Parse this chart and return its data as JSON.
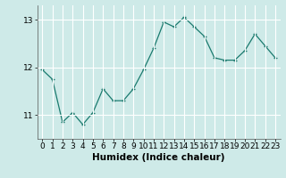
{
  "x": [
    0,
    1,
    2,
    3,
    4,
    5,
    6,
    7,
    8,
    9,
    10,
    11,
    12,
    13,
    14,
    15,
    16,
    17,
    18,
    19,
    20,
    21,
    22,
    23
  ],
  "y": [
    11.95,
    11.75,
    10.85,
    11.05,
    10.8,
    11.05,
    11.55,
    11.3,
    11.3,
    11.55,
    11.95,
    12.4,
    12.95,
    12.85,
    13.05,
    12.85,
    12.65,
    12.2,
    12.15,
    12.15,
    12.35,
    12.7,
    12.45,
    12.2
  ],
  "xlabel": "Humidex (Indice chaleur)",
  "ylim": [
    10.5,
    13.3
  ],
  "xlim": [
    -0.5,
    23.5
  ],
  "yticks": [
    11,
    12,
    13
  ],
  "xticks": [
    0,
    1,
    2,
    3,
    4,
    5,
    6,
    7,
    8,
    9,
    10,
    11,
    12,
    13,
    14,
    15,
    16,
    17,
    18,
    19,
    20,
    21,
    22,
    23
  ],
  "line_color": "#1a7a6e",
  "marker_color": "#1a7a6e",
  "bg_color": "#ceeae8",
  "grid_color": "#ffffff",
  "xlabel_fontsize": 7.5,
  "tick_fontsize": 6.5
}
